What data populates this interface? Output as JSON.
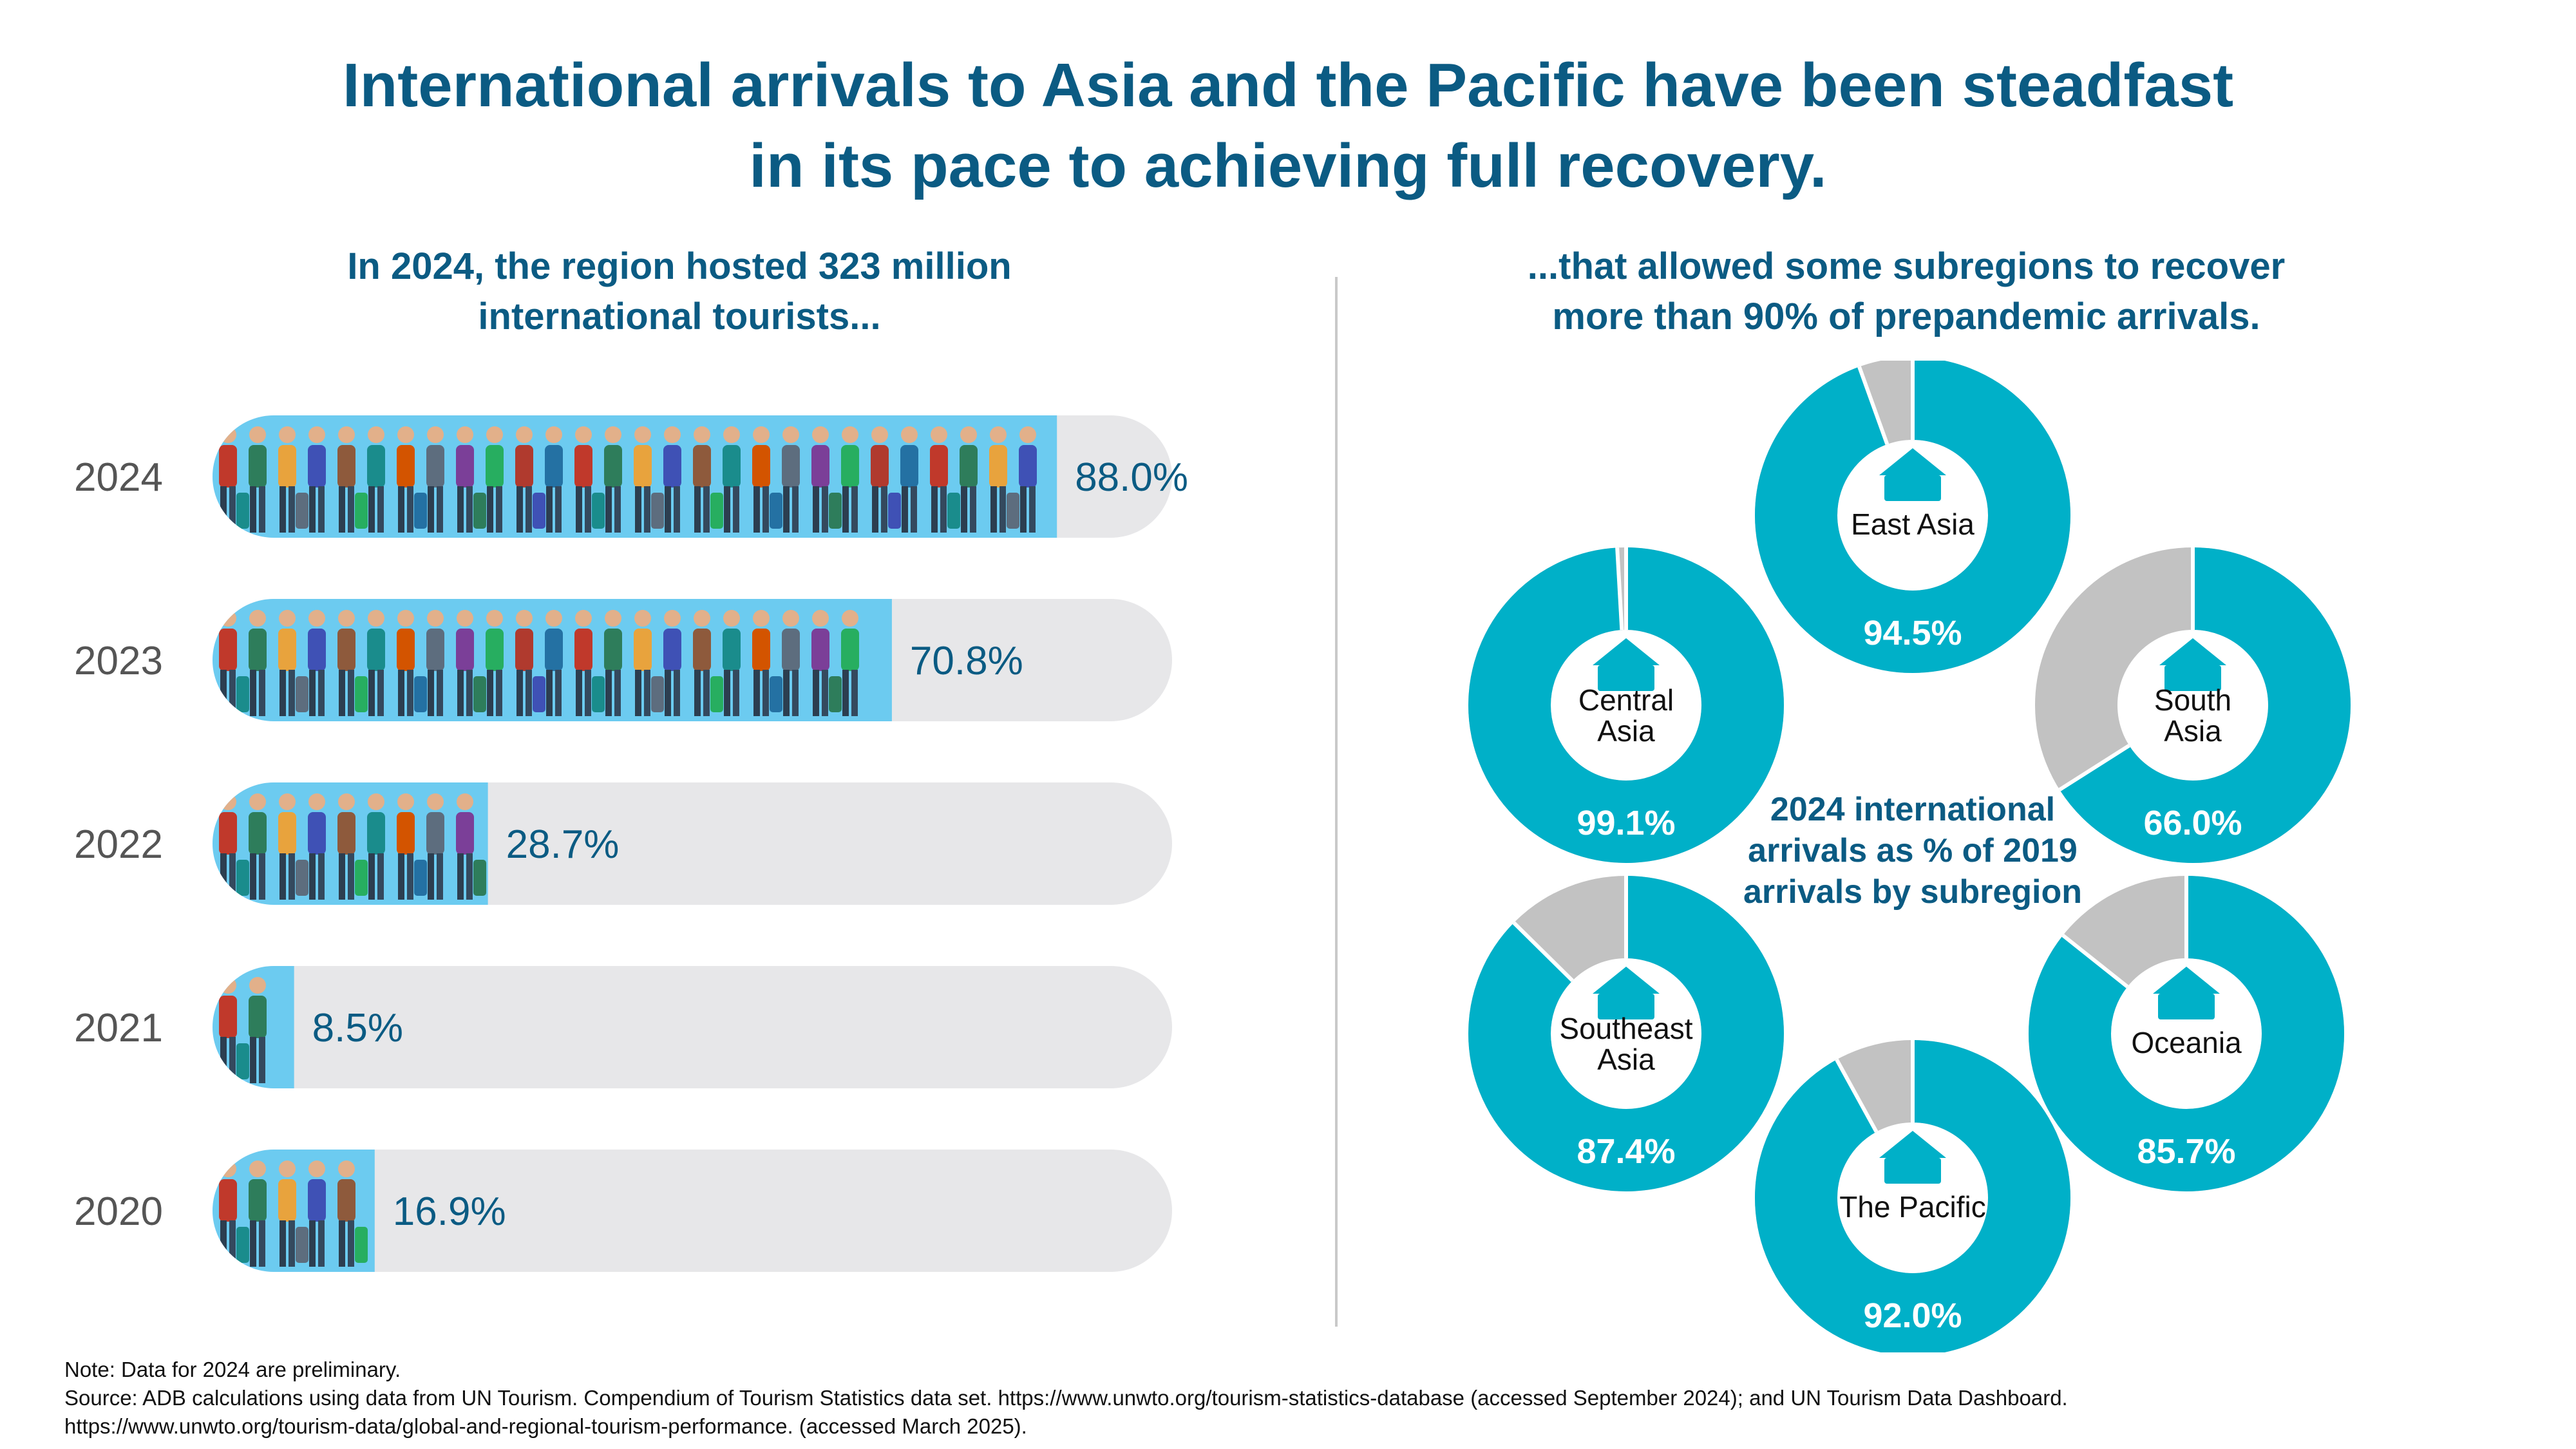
{
  "title_line1": "International arrivals to Asia and the Pacific have been steadfast",
  "title_line2": "in its pace to achieving full recovery.",
  "left_subtitle_line1": "In 2024, the region hosted 323 million",
  "left_subtitle_line2": "international tourists...",
  "right_subtitle_line1": "...that allowed some subregions to recover",
  "right_subtitle_line2": "more than 90% of prepandemic arrivals.",
  "center_label_line1": "2024 international",
  "center_label_line2": "arrivals as % of 2019",
  "center_label_line3": "arrivals by subregion",
  "note": "Note: Data for 2024 are preliminary.",
  "source_line1": "Source: ADB calculations using data from UN Tourism. Compendium of Tourism Statistics data set. https://www.unwto.org/tourism-statistics-database (accessed September 2024); and UN Tourism Data Dashboard.",
  "source_line2": "https://www.unwto.org/tourism-data/global-and-regional-tourism-performance. (accessed March 2025).",
  "colors": {
    "title": "#0b5b83",
    "bar_fill": "#6ccbf0",
    "bar_track": "#e7e7e9",
    "donut_teal": "#00b0c8",
    "donut_gray": "#c2c2c2"
  },
  "chart_data": [
    {
      "type": "bar",
      "orientation": "horizontal",
      "categories": [
        "2024",
        "2023",
        "2022",
        "2021",
        "2020"
      ],
      "values": [
        88.0,
        70.8,
        28.7,
        8.5,
        16.9
      ],
      "labels": [
        "88.0%",
        "70.8%",
        "28.7%",
        "8.5%",
        "16.9%"
      ],
      "xlim": [
        0,
        100
      ]
    },
    {
      "type": "pie",
      "style": "donut",
      "categories": [
        "East Asia",
        "Central Asia",
        "South Asia",
        "Southeast Asia",
        "Oceania",
        "The Pacific"
      ],
      "values": [
        94.5,
        99.1,
        66.0,
        87.4,
        85.7,
        92.0
      ],
      "labels": [
        "94.5%",
        "99.1%",
        "66.0%",
        "87.4%",
        "85.7%",
        "92.0%"
      ],
      "category_lines": [
        [
          "East Asia"
        ],
        [
          "Central",
          "Asia"
        ],
        [
          "South",
          "Asia"
        ],
        [
          "Southeast",
          "Asia"
        ],
        [
          "Oceania"
        ],
        [
          "The Pacific"
        ]
      ]
    }
  ]
}
